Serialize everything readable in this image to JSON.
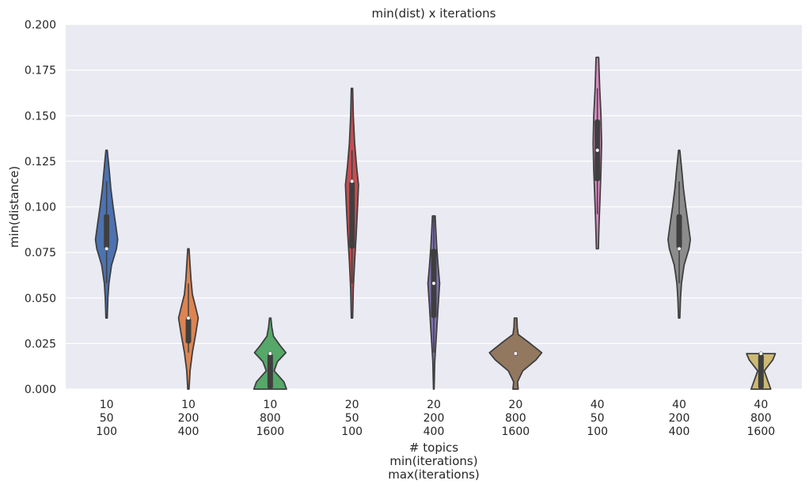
{
  "chart_data": {
    "type": "violin",
    "title": "min(dist) x iterations",
    "xlabel_lines": [
      "# topics",
      "min(iterations)",
      "max(iterations)"
    ],
    "ylabel": "min(distance)",
    "ylim": [
      0,
      0.2
    ],
    "yticks": [
      "0.000",
      "0.025",
      "0.050",
      "0.075",
      "0.100",
      "0.125",
      "0.150",
      "0.175",
      "0.200"
    ],
    "grid": true,
    "categories": [
      {
        "lines": [
          "10",
          "50",
          "100"
        ],
        "color": "#4c72b0",
        "min": 0.039,
        "max": 0.131,
        "q1": 0.077,
        "median": 0.077,
        "q3": 0.096,
        "whisker_low": 0.058,
        "whisker_high": 0.114,
        "profile": [
          [
            0.039,
            0.02
          ],
          [
            0.05,
            0.04
          ],
          [
            0.058,
            0.07
          ],
          [
            0.068,
            0.15
          ],
          [
            0.077,
            0.3
          ],
          [
            0.082,
            0.34
          ],
          [
            0.09,
            0.28
          ],
          [
            0.1,
            0.2
          ],
          [
            0.11,
            0.13
          ],
          [
            0.12,
            0.08
          ],
          [
            0.131,
            0.02
          ]
        ]
      },
      {
        "lines": [
          "10",
          "200",
          "400"
        ],
        "color": "#dd8452",
        "min": 0.0,
        "max": 0.077,
        "q1": 0.025,
        "median": 0.039,
        "q3": 0.039,
        "whisker_low": 0.02,
        "whisker_high": 0.058,
        "profile": [
          [
            0.0,
            0.02
          ],
          [
            0.01,
            0.05
          ],
          [
            0.02,
            0.12
          ],
          [
            0.03,
            0.22
          ],
          [
            0.039,
            0.3
          ],
          [
            0.045,
            0.22
          ],
          [
            0.052,
            0.12
          ],
          [
            0.06,
            0.08
          ],
          [
            0.068,
            0.05
          ],
          [
            0.077,
            0.02
          ]
        ]
      },
      {
        "lines": [
          "10",
          "800",
          "1600"
        ],
        "color": "#55a868",
        "min": 0.0,
        "max": 0.039,
        "q1": 0.0,
        "median": 0.0195,
        "q3": 0.0195,
        "whisker_low": 0.0,
        "whisker_high": 0.0195,
        "profile": [
          [
            0.0,
            0.5
          ],
          [
            0.004,
            0.42
          ],
          [
            0.01,
            0.12
          ],
          [
            0.015,
            0.22
          ],
          [
            0.02,
            0.48
          ],
          [
            0.024,
            0.3
          ],
          [
            0.029,
            0.1
          ],
          [
            0.034,
            0.05
          ],
          [
            0.039,
            0.02
          ]
        ]
      },
      {
        "lines": [
          "20",
          "50",
          "100"
        ],
        "color": "#c44e52",
        "min": 0.039,
        "max": 0.165,
        "q1": 0.077,
        "median": 0.114,
        "q3": 0.114,
        "whisker_low": 0.058,
        "whisker_high": 0.131,
        "profile": [
          [
            0.039,
            0.02
          ],
          [
            0.055,
            0.04
          ],
          [
            0.07,
            0.08
          ],
          [
            0.085,
            0.13
          ],
          [
            0.1,
            0.17
          ],
          [
            0.112,
            0.2
          ],
          [
            0.122,
            0.14
          ],
          [
            0.135,
            0.08
          ],
          [
            0.15,
            0.04
          ],
          [
            0.165,
            0.02
          ]
        ]
      },
      {
        "lines": [
          "20",
          "200",
          "400"
        ],
        "color": "#8172b3",
        "min": 0.0,
        "max": 0.095,
        "q1": 0.039,
        "median": 0.058,
        "q3": 0.077,
        "whisker_low": 0.02,
        "whisker_high": 0.095,
        "profile": [
          [
            0.0,
            0.01
          ],
          [
            0.015,
            0.03
          ],
          [
            0.03,
            0.08
          ],
          [
            0.045,
            0.13
          ],
          [
            0.058,
            0.18
          ],
          [
            0.068,
            0.13
          ],
          [
            0.078,
            0.09
          ],
          [
            0.088,
            0.06
          ],
          [
            0.095,
            0.04
          ]
        ]
      },
      {
        "lines": [
          "20",
          "800",
          "1600"
        ],
        "color": "#937860",
        "min": 0.0,
        "max": 0.039,
        "q1": 0.0195,
        "median": 0.0195,
        "q3": 0.0195,
        "whisker_low": 0.0195,
        "whisker_high": 0.0195,
        "profile": [
          [
            0.0,
            0.08
          ],
          [
            0.004,
            0.06
          ],
          [
            0.01,
            0.22
          ],
          [
            0.016,
            0.62
          ],
          [
            0.02,
            0.8
          ],
          [
            0.025,
            0.45
          ],
          [
            0.03,
            0.08
          ],
          [
            0.034,
            0.05
          ],
          [
            0.039,
            0.04
          ]
        ]
      },
      {
        "lines": [
          "40",
          "50",
          "100"
        ],
        "color": "#da8bc3",
        "min": 0.077,
        "max": 0.182,
        "q1": 0.114,
        "median": 0.131,
        "q3": 0.148,
        "whisker_low": 0.096,
        "whisker_high": 0.165,
        "profile": [
          [
            0.077,
            0.03
          ],
          [
            0.09,
            0.05
          ],
          [
            0.105,
            0.08
          ],
          [
            0.12,
            0.11
          ],
          [
            0.135,
            0.13
          ],
          [
            0.15,
            0.11
          ],
          [
            0.165,
            0.07
          ],
          [
            0.176,
            0.05
          ],
          [
            0.182,
            0.04
          ]
        ]
      },
      {
        "lines": [
          "40",
          "200",
          "400"
        ],
        "color": "#8c8c8c",
        "min": 0.039,
        "max": 0.131,
        "q1": 0.077,
        "median": 0.077,
        "q3": 0.096,
        "whisker_low": 0.058,
        "whisker_high": 0.114,
        "profile": [
          [
            0.039,
            0.02
          ],
          [
            0.05,
            0.04
          ],
          [
            0.058,
            0.07
          ],
          [
            0.068,
            0.15
          ],
          [
            0.077,
            0.3
          ],
          [
            0.082,
            0.34
          ],
          [
            0.09,
            0.28
          ],
          [
            0.1,
            0.2
          ],
          [
            0.11,
            0.13
          ],
          [
            0.12,
            0.08
          ],
          [
            0.131,
            0.02
          ]
        ]
      },
      {
        "lines": [
          "40",
          "800",
          "1600"
        ],
        "color": "#ccb974",
        "min": 0.0,
        "max": 0.0195,
        "q1": 0.0,
        "median": 0.0195,
        "q3": 0.0195,
        "whisker_low": 0.0,
        "whisker_high": 0.0195,
        "profile": [
          [
            0.0,
            0.3
          ],
          [
            0.004,
            0.22
          ],
          [
            0.01,
            0.1
          ],
          [
            0.016,
            0.36
          ],
          [
            0.0195,
            0.44
          ]
        ]
      }
    ]
  }
}
